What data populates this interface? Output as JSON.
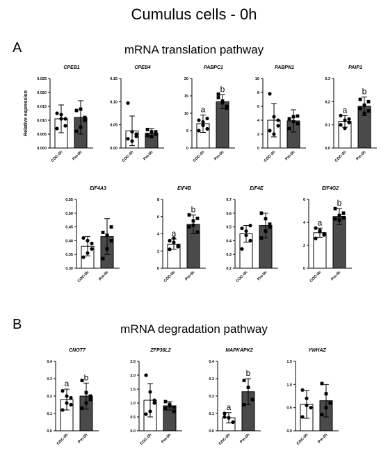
{
  "figure": {
    "title": "Cumulus cells - 0h",
    "panel_a_label": "A",
    "panel_a_title": "mRNA translation pathway",
    "panel_b_label": "B",
    "panel_b_title": "mRNA degradation pathway"
  },
  "colors": {
    "coc_fill": "#ffffff",
    "pm_fill": "#4a4a4a",
    "axis": "#000000"
  },
  "chart_data": [
    {
      "type": "bar",
      "title": "CPEB1",
      "ylabel": "Relative expression",
      "categories": [
        "COC-0h",
        "Pm-0h"
      ],
      "ylim": [
        0,
        0.025
      ],
      "yticks": [
        "0.000",
        "0.005",
        "0.010",
        "0.015",
        "0.020",
        "0.025"
      ],
      "values": [
        0.0105,
        0.011
      ],
      "errors": [
        0.005,
        0.006
      ],
      "points": [
        [
          0.0125,
          0.0105,
          0.008,
          0.007,
          0.012,
          0.0105
        ],
        [
          0.0135,
          0.0075,
          0.01,
          0.006,
          0.014,
          0.011
        ]
      ],
      "letters": [
        "",
        ""
      ]
    },
    {
      "type": "bar",
      "title": "CPEB4",
      "ylabel": "",
      "categories": [
        "COC-0h",
        "Pm-0h"
      ],
      "ylim": [
        0,
        0.15
      ],
      "yticks": [
        "0.00",
        "0.05",
        "0.10",
        "0.15"
      ],
      "values": [
        0.037,
        0.032
      ],
      "errors": [
        0.032,
        0.01
      ],
      "points": [
        [
          0.097,
          0.035,
          0.03,
          0.02,
          0.015,
          0.025
        ],
        [
          0.04,
          0.035,
          0.03,
          0.027,
          0.025,
          0.035
        ]
      ],
      "letters": [
        "",
        ""
      ]
    },
    {
      "type": "bar",
      "title": "PABPC1",
      "ylabel": "",
      "categories": [
        "COC-0h",
        "Pm-0h"
      ],
      "ylim": [
        0,
        20
      ],
      "yticks": [
        "0",
        "5",
        "10",
        "15",
        "20"
      ],
      "values": [
        7.0,
        13.3
      ],
      "errors": [
        2.5,
        2.0
      ],
      "points": [
        [
          8.0,
          6.5,
          5.5,
          5.0,
          7.5,
          8.5
        ],
        [
          15.5,
          13.0,
          12.0,
          14.5,
          13.5,
          11.5
        ]
      ],
      "letters": [
        "a",
        "b"
      ]
    },
    {
      "type": "bar",
      "title": "PABPN1",
      "ylabel": "",
      "categories": [
        "COC-0h",
        "Pm-0h"
      ],
      "ylim": [
        0,
        10
      ],
      "yticks": [
        "0",
        "2",
        "4",
        "6",
        "8",
        "10"
      ],
      "values": [
        4.0,
        3.9
      ],
      "errors": [
        2.4,
        1.6
      ],
      "points": [
        [
          7.8,
          4.5,
          4.0,
          2.5,
          2.0,
          3.2
        ],
        [
          4.2,
          3.8,
          3.5,
          2.8,
          4.5,
          4.6
        ]
      ],
      "letters": [
        "",
        ""
      ]
    },
    {
      "type": "bar",
      "title": "PAIP1",
      "ylabel": "",
      "categories": [
        "COC-0h",
        "Pm-0h"
      ],
      "ylim": [
        0,
        0.3
      ],
      "yticks": [
        "0.0",
        "0.1",
        "0.2",
        "0.3"
      ],
      "values": [
        0.115,
        0.18
      ],
      "errors": [
        0.025,
        0.04
      ],
      "points": [
        [
          0.14,
          0.12,
          0.11,
          0.1,
          0.085,
          0.125
        ],
        [
          0.21,
          0.185,
          0.16,
          0.17,
          0.15,
          0.2
        ]
      ],
      "letters": [
        "a",
        "b"
      ]
    },
    {
      "type": "bar",
      "title": "EIF4A3",
      "ylabel": "",
      "categories": [
        "COC-0h",
        "Pm-0h"
      ],
      "ylim": [
        0.3,
        0.55
      ],
      "yticks": [
        "0.30",
        "0.35",
        "0.40",
        "0.45",
        "0.50",
        "0.55"
      ],
      "values": [
        0.38,
        0.415
      ],
      "errors": [
        0.035,
        0.065
      ],
      "points": [
        [
          0.41,
          0.4,
          0.37,
          0.34,
          0.355,
          0.39
        ],
        [
          0.43,
          0.42,
          0.4,
          0.335,
          0.37,
          0.45
        ]
      ],
      "letters": [
        "",
        ""
      ]
    },
    {
      "type": "bar",
      "title": "EIF4B",
      "ylabel": "",
      "categories": [
        "COC-0h",
        "Pm-0h"
      ],
      "ylim": [
        0,
        8
      ],
      "yticks": [
        "0",
        "2",
        "4",
        "6",
        "8"
      ],
      "values": [
        2.8,
        5.1
      ],
      "errors": [
        0.6,
        1.1
      ],
      "points": [
        [
          3.2,
          3.0,
          2.5,
          2.2,
          3.5,
          2.6
        ],
        [
          6.2,
          5.5,
          4.2,
          4.8,
          5.0,
          5.8
        ]
      ],
      "letters": [
        "a",
        "b"
      ]
    },
    {
      "type": "bar",
      "title": "EIF4E",
      "ylabel": "",
      "categories": [
        "COC-0h",
        "Pm-0h"
      ],
      "ylim": [
        0.2,
        0.7
      ],
      "yticks": [
        "0.2",
        "0.3",
        "0.4",
        "0.5",
        "0.6",
        "0.7"
      ],
      "values": [
        0.45,
        0.51
      ],
      "errors": [
        0.06,
        0.09
      ],
      "points": [
        [
          0.49,
          0.44,
          0.4,
          0.34,
          0.47,
          0.51
        ],
        [
          0.6,
          0.56,
          0.5,
          0.42,
          0.47,
          0.52
        ]
      ],
      "letters": [
        "",
        ""
      ]
    },
    {
      "type": "bar",
      "title": "EIF4G2",
      "ylabel": "",
      "categories": [
        "COC-0h",
        "Pm-0h"
      ],
      "ylim": [
        0,
        6
      ],
      "yticks": [
        "0",
        "2",
        "4",
        "6"
      ],
      "values": [
        3.1,
        4.5
      ],
      "errors": [
        0.4,
        0.7
      ],
      "points": [
        [
          3.5,
          3.3,
          2.9,
          2.6,
          3.2,
          3.0
        ],
        [
          5.2,
          4.6,
          4.4,
          4.3,
          4.2,
          4.8
        ]
      ],
      "letters": [
        "a",
        "b"
      ]
    },
    {
      "type": "bar",
      "title": "CNOT7",
      "ylabel": "",
      "categories": [
        "COC-0h",
        "Pm-0h"
      ],
      "ylim": [
        0,
        0.4
      ],
      "yticks": [
        "0.0",
        "0.1",
        "0.2",
        "0.3",
        "0.4"
      ],
      "values": [
        0.18,
        0.2
      ],
      "errors": [
        0.06,
        0.075
      ],
      "points": [
        [
          0.23,
          0.2,
          0.15,
          0.12,
          0.16,
          0.19
        ],
        [
          0.29,
          0.22,
          0.18,
          0.13,
          0.16,
          0.2
        ]
      ],
      "letters": [
        "a",
        "b"
      ]
    },
    {
      "type": "bar",
      "title": "ZFP36L2",
      "ylabel": "",
      "categories": [
        "COC-0h",
        "Pm-0h"
      ],
      "ylim": [
        0,
        2.5
      ],
      "yticks": [
        "0.0",
        "0.5",
        "1.0",
        "1.5",
        "2.0",
        "2.5"
      ],
      "values": [
        1.1,
        0.9
      ],
      "errors": [
        0.6,
        0.15
      ],
      "points": [
        [
          2.0,
          1.4,
          1.0,
          0.6,
          0.7,
          1.1
        ],
        [
          1.05,
          0.95,
          0.85,
          0.8,
          0.9,
          0.7
        ]
      ],
      "letters": [
        "",
        ""
      ]
    },
    {
      "type": "bar",
      "title": "MAPKAPK2",
      "ylabel": "",
      "categories": [
        "COC-0h",
        "Pm-0h"
      ],
      "ylim": [
        0,
        0.4
      ],
      "yticks": [
        "0.0",
        "0.1",
        "0.2",
        "0.3",
        "0.4"
      ],
      "values": [
        0.075,
        0.225
      ],
      "errors": [
        0.03,
        0.075
      ],
      "points": [
        [
          0.1,
          0.075,
          0.05,
          0.08
        ],
        [
          0.29,
          0.25,
          0.18,
          0.15
        ]
      ],
      "letters": [
        "a",
        "b"
      ]
    },
    {
      "type": "bar",
      "title": "YWHAZ",
      "ylabel": "",
      "categories": [
        "COC-0h",
        "Pm-0h"
      ],
      "ylim": [
        0,
        1.5
      ],
      "yticks": [
        "0.0",
        "0.5",
        "1.0",
        "1.5"
      ],
      "values": [
        0.57,
        0.65
      ],
      "errors": [
        0.3,
        0.35
      ],
      "points": [
        [
          0.88,
          0.7,
          0.5,
          0.3,
          0.55
        ],
        [
          1.02,
          0.8,
          0.6,
          0.35,
          0.5
        ]
      ],
      "letters": [
        "",
        ""
      ]
    }
  ]
}
